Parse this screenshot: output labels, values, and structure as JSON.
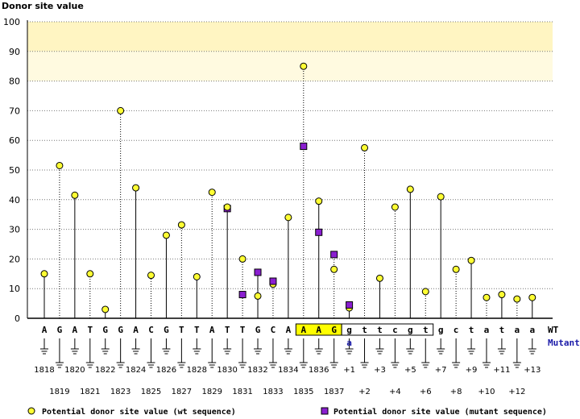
{
  "chart_data": {
    "type": "scatter",
    "title": "Donor site value",
    "ylim": [
      0,
      100
    ],
    "yticks": [
      0,
      10,
      20,
      30,
      40,
      50,
      60,
      70,
      80,
      90,
      100
    ],
    "grid": true,
    "colors": {
      "wt": "#ffff33",
      "mutant": "#8a1ed0",
      "band_upper": "#fff5c2",
      "band_lower": "#fffae0",
      "highlight_box": "#ffff00"
    },
    "highlight_band": [
      80,
      100
    ],
    "row_labels": {
      "wt": "WT",
      "mutant": "Mutant"
    },
    "mutation_label": "a",
    "wt_sequence": [
      "A",
      "G",
      "A",
      "T",
      "G",
      "G",
      "A",
      "C",
      "G",
      "T",
      "T",
      "A",
      "T",
      "T",
      "G",
      "C",
      "A",
      "A",
      "A",
      "G",
      "g",
      "t",
      "t",
      "c",
      "g",
      "t",
      "g",
      "c",
      "t",
      "a",
      "t",
      "a",
      "a"
    ],
    "positions": [
      "1818",
      "1819",
      "1820",
      "1821",
      "1822",
      "1823",
      "1824",
      "1825",
      "1826",
      "1827",
      "1828",
      "1829",
      "1830",
      "1831",
      "1832",
      "1833",
      "1834",
      "1835",
      "1836",
      "1837",
      "+1",
      "+2",
      "+3",
      "+4",
      "+5",
      "+6",
      "+7",
      "+8",
      "+9",
      "+10",
      "+11",
      "+12",
      "+13"
    ],
    "series": [
      {
        "name": "Potential donor site value (wt sequence)",
        "values": [
          15,
          51.5,
          41.5,
          15,
          3,
          70,
          44,
          14.5,
          28,
          31.5,
          14,
          42.5,
          37.5,
          20,
          7.5,
          11.5,
          34,
          85,
          39.5,
          16.5,
          3.5,
          57.5,
          13.5,
          37.5,
          43.5,
          9,
          41,
          16.5,
          19.5,
          7,
          8,
          6.5,
          7
        ]
      },
      {
        "name": "Potential donor site value (mutant sequence)",
        "values": [
          null,
          null,
          null,
          null,
          null,
          null,
          null,
          null,
          null,
          null,
          null,
          null,
          37,
          8,
          15.5,
          12.5,
          null,
          58,
          29,
          21.5,
          4.5,
          null,
          null,
          null,
          null,
          null,
          null,
          null,
          null,
          null,
          null,
          null,
          null
        ]
      }
    ]
  }
}
